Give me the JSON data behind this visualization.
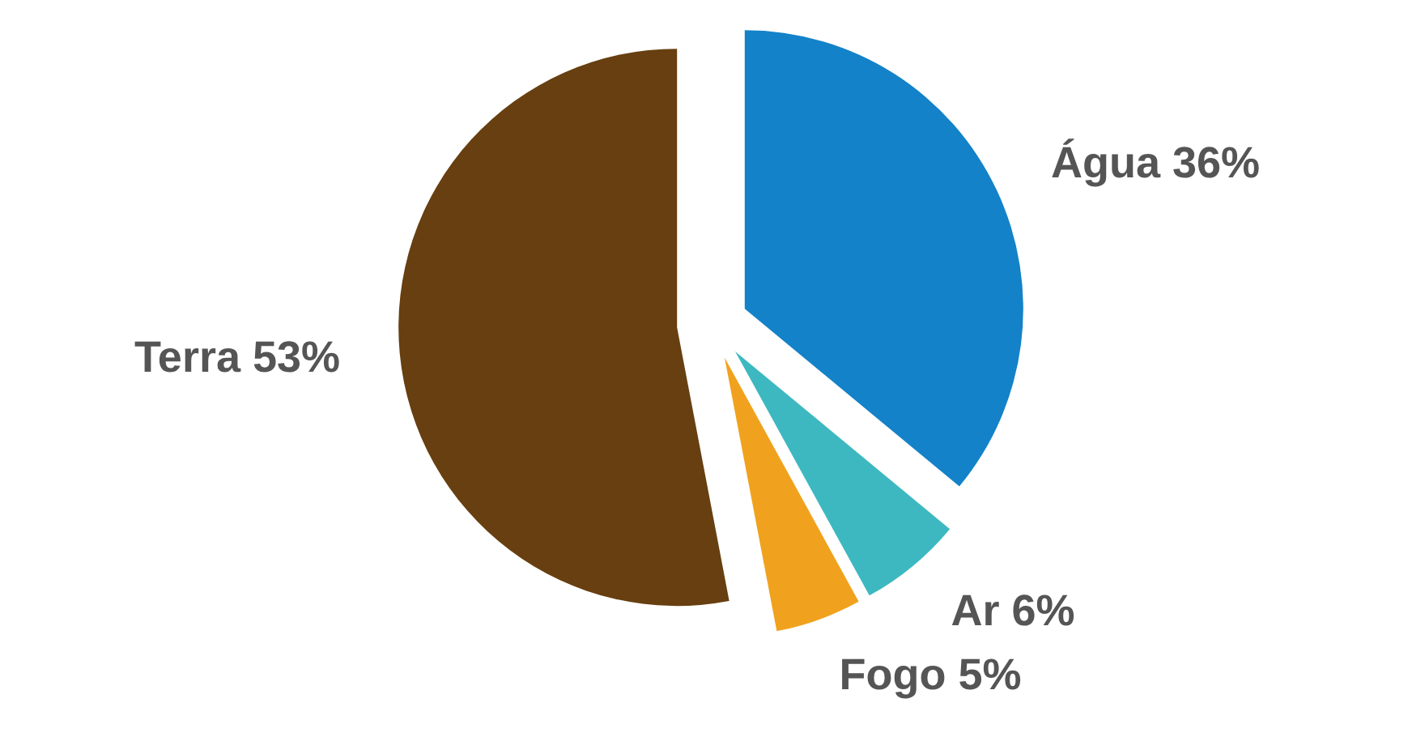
{
  "chart_data": {
    "type": "pie",
    "categories": [
      "Água",
      "Ar",
      "Fogo",
      "Terra"
    ],
    "values": [
      36,
      6,
      5,
      53
    ],
    "value_labels": [
      "36%",
      "6%",
      "5%",
      "53%"
    ],
    "colors": [
      "#1382c8",
      "#3db8c0",
      "#f0a21e",
      "#673f10"
    ]
  }
}
